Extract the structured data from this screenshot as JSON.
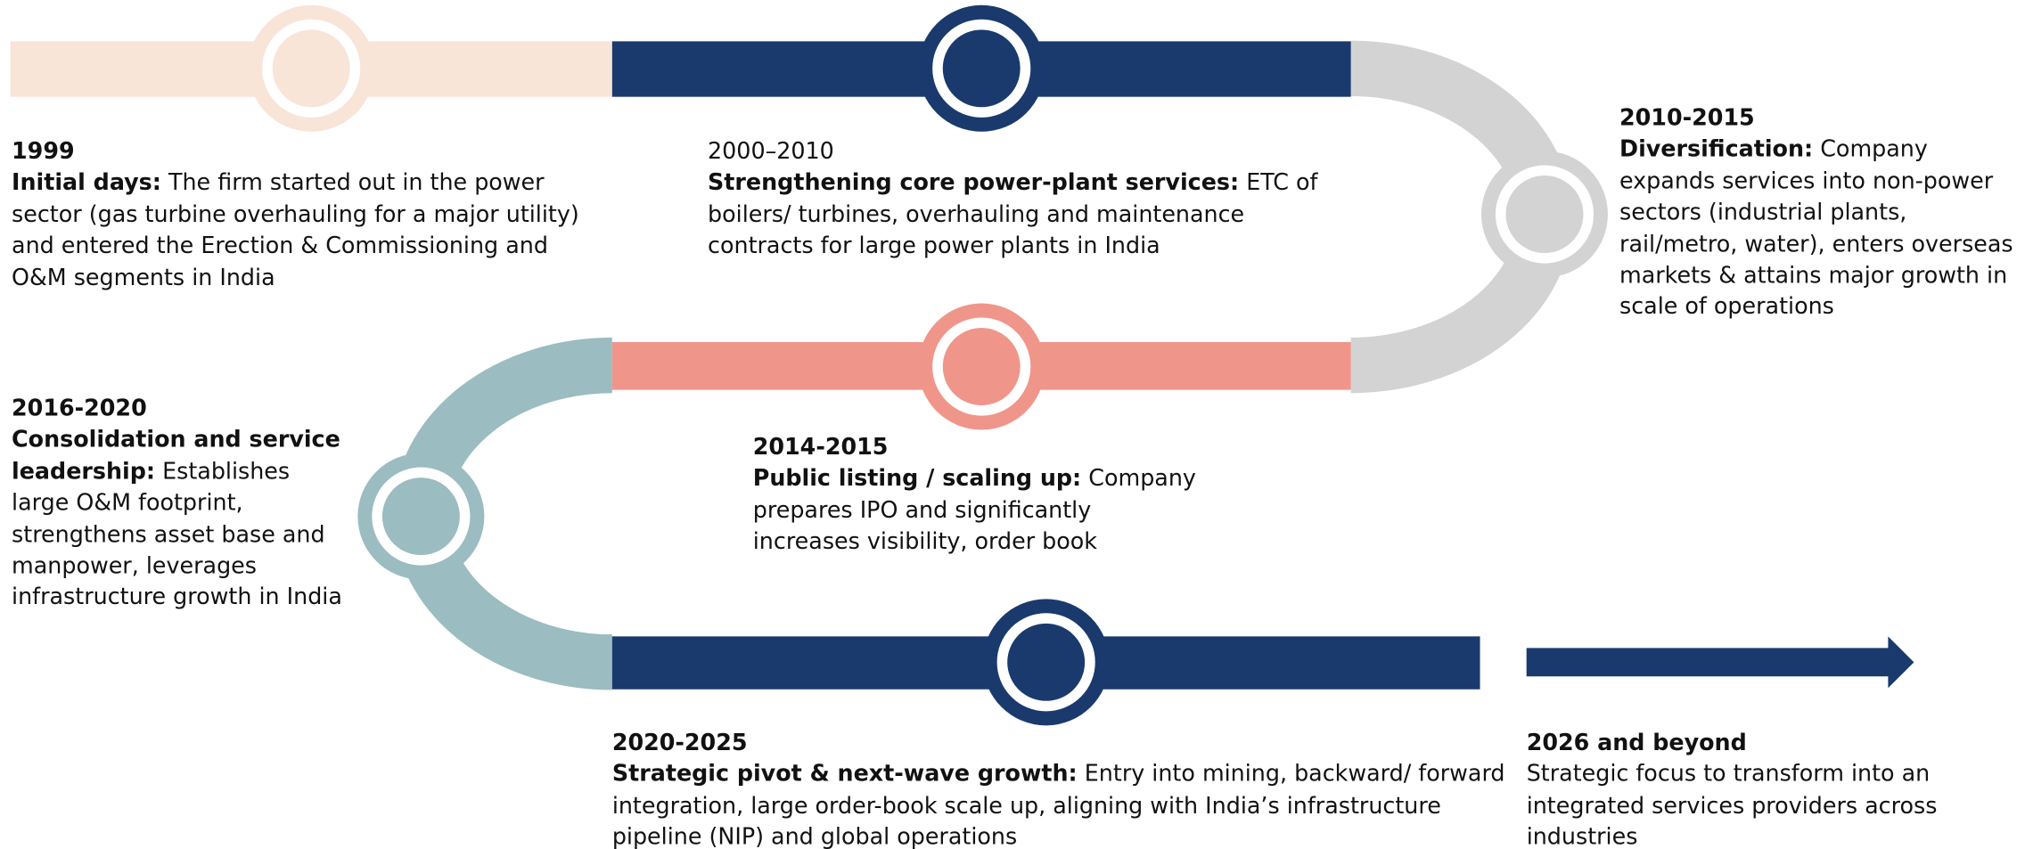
{
  "milestones": [
    {
      "period": "1999",
      "heading": "Initial days:",
      "text": "The firm started out in the power sector (gas turbine overhauling for a major utility) and entered the Erection & Commissioning and O&M segments in India"
    },
    {
      "period": "2000–2010",
      "heading": "Strengthening core power-plant services:",
      "text": "ETC of boilers/ turbines, overhauling and maintenance contracts for large power plants in India"
    },
    {
      "period": "2010-2015",
      "heading": "Diversification:",
      "text": "Company expands services into non-power sectors (industrial plants, rail/metro, water), enters overseas markets & attains major growth in scale of operations"
    },
    {
      "period": "2016-2020",
      "heading": "Consolidation and service leadership:",
      "text": "Establishes large O&M footprint, strengthens asset base and manpower, leverages infrastructure growth in India"
    },
    {
      "period": "2014-2015",
      "heading": "Public listing / scaling up:",
      "text": "Company prepares IPO and significantly increases visibility, order book"
    },
    {
      "period": "2020-2025",
      "heading": "Strategic pivot & next-wave growth:",
      "text": "Entry into mining, backward/ forward integration, large order-book scale up, aligning with India’s infrastructure pipeline (NIP) and global operations"
    },
    {
      "period": "2026 and beyond",
      "text": "Strategic focus to transform into an integrated services providers across industries"
    }
  ]
}
